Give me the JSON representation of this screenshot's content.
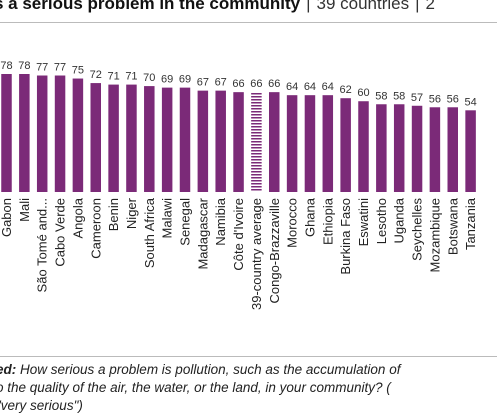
{
  "title": {
    "main": "s a serious problem in the community",
    "separator": "|",
    "countries": "39 countries",
    "extra": "2"
  },
  "footnote": {
    "lead": "ed:",
    "line1": " How serious a problem is pollution, such as the accumulation of",
    "line2": "o the quality of the air, the water, or the land, in your community? (",
    "line3": "\"very serious\")"
  },
  "colors": {
    "bar": "#7b2a78",
    "average_bar": "#7b2a78",
    "text": "#333333"
  },
  "chart_data": {
    "type": "bar",
    "title": "",
    "xlabel": "",
    "ylabel": "",
    "ylim": [
      0,
      80
    ],
    "grid": false,
    "categories": [
      "Gabon",
      "Mali",
      "São Tomé and...",
      "Cabo Verde",
      "Angola",
      "Cameroon",
      "Benin",
      "Niger",
      "South Africa",
      "Malawi",
      "Senegal",
      "Madagascar",
      "Namibia",
      "Côte d'Ivoire",
      "39-country average",
      "Congo-Brazzaville",
      "Morocco",
      "Ghana",
      "Ethiopia",
      "Burkina Faso",
      "Eswatini",
      "Lesotho",
      "Uganda",
      "Seychelles",
      "Mozambique",
      "Botswana",
      "Tanzania"
    ],
    "values": [
      78,
      78,
      77,
      77,
      75,
      72,
      71,
      71,
      70,
      69,
      69,
      67,
      67,
      66,
      66,
      66,
      64,
      64,
      64,
      62,
      60,
      58,
      58,
      57,
      56,
      56,
      54
    ],
    "highlight": "39-country average"
  }
}
